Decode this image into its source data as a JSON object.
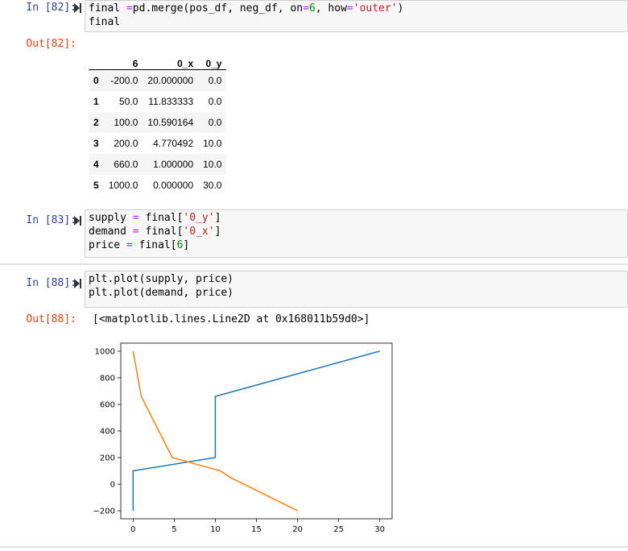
{
  "cells": {
    "c82": {
      "in_prompt": "In [82]:",
      "out_prompt": "Out[82]:",
      "code": [
        [
          {
            "t": "final "
          },
          {
            "t": "=",
            "c": "kw-op"
          },
          {
            "t": "pd.merge(pos_df, neg_df, on"
          },
          {
            "t": "=",
            "c": "kw-op"
          },
          {
            "t": "6",
            "c": "num"
          },
          {
            "t": ", how"
          },
          {
            "t": "=",
            "c": "kw-op"
          },
          {
            "t": "'outer'",
            "c": "str"
          },
          {
            "t": ")"
          }
        ],
        [
          {
            "t": "final"
          }
        ]
      ],
      "table": {
        "columns": [
          "",
          "6",
          "0_x",
          "0_y"
        ],
        "rows": [
          [
            "0",
            "-200.0",
            "20.000000",
            "0.0"
          ],
          [
            "1",
            "50.0",
            "11.833333",
            "0.0"
          ],
          [
            "2",
            "100.0",
            "10.590164",
            "0.0"
          ],
          [
            "3",
            "200.0",
            "4.770492",
            "10.0"
          ],
          [
            "4",
            "660.0",
            "1.000000",
            "10.0"
          ],
          [
            "5",
            "1000.0",
            "0.000000",
            "30.0"
          ]
        ]
      }
    },
    "c83": {
      "in_prompt": "In [83]:",
      "code": [
        [
          {
            "t": "supply "
          },
          {
            "t": "=",
            "c": "kw-op"
          },
          {
            "t": " final["
          },
          {
            "t": "'0_y'",
            "c": "str"
          },
          {
            "t": "]"
          }
        ],
        [
          {
            "t": "demand "
          },
          {
            "t": "=",
            "c": "kw-op"
          },
          {
            "t": " final["
          },
          {
            "t": "'0_x'",
            "c": "str"
          },
          {
            "t": "]"
          }
        ],
        [
          {
            "t": "price "
          },
          {
            "t": "=",
            "c": "kw-op"
          },
          {
            "t": " final["
          },
          {
            "t": "6",
            "c": "num"
          },
          {
            "t": "]"
          }
        ]
      ]
    },
    "c88": {
      "in_prompt": "In [88]:",
      "out_prompt": "Out[88]:",
      "code": [
        [
          {
            "t": "plt.plot(supply, price)"
          }
        ],
        [
          {
            "t": "plt.plot(demand, price)"
          }
        ]
      ],
      "output_text": "[<matplotlib.lines.Line2D at 0x168011b59d0>]"
    }
  },
  "colors": {
    "series1": "#1f77b4",
    "series2": "#ff7f0e"
  },
  "chart_data": {
    "type": "line",
    "title": "",
    "xlabel": "",
    "ylabel": "",
    "xlim": [
      -1.5,
      31.5
    ],
    "ylim": [
      -260,
      1060
    ],
    "xticks": [
      0,
      5,
      10,
      15,
      20,
      25,
      30
    ],
    "yticks": [
      -200,
      0,
      200,
      400,
      600,
      800,
      1000
    ],
    "xtick_labels": [
      "0",
      "5",
      "10",
      "15",
      "20",
      "25",
      "30"
    ],
    "ytick_labels": [
      "−200",
      "0",
      "200",
      "400",
      "600",
      "800",
      "1000"
    ],
    "grid": false,
    "series": [
      {
        "x": [
          0.0,
          0.0,
          0.0,
          10.0,
          10.0,
          30.0
        ],
        "y": [
          -200,
          50,
          100,
          200,
          660,
          1000
        ]
      },
      {
        "x": [
          20.0,
          11.833333,
          10.590164,
          4.770492,
          1.0,
          0.0
        ],
        "y": [
          -200,
          50,
          100,
          200,
          660,
          1000
        ]
      }
    ]
  }
}
